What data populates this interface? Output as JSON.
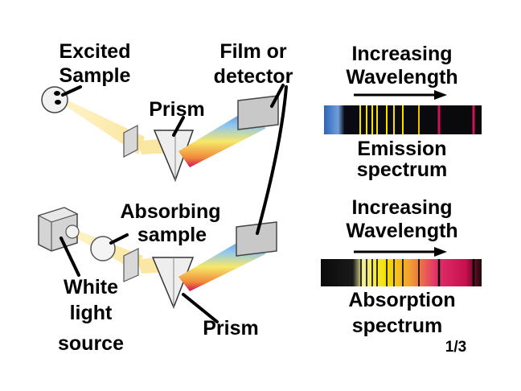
{
  "labels": {
    "excited_sample": [
      "Excited",
      "Sample"
    ],
    "film_detector": [
      "Film or",
      "detector"
    ],
    "prism_top": "Prism",
    "absorbing_sample": [
      "Absorbing",
      "sample"
    ],
    "white_light_source": [
      "White",
      "light",
      "source"
    ],
    "prism_bottom": "Prism",
    "increasing_wavelength_top": [
      "Increasing",
      "Wavelength"
    ],
    "emission_spectrum": [
      "Emission",
      "spectrum"
    ],
    "increasing_wavelength_bottom": [
      "Increasing",
      "Wavelength"
    ],
    "absorption_spectrum": [
      "Absorption",
      "spectrum"
    ],
    "page_number": "1/3"
  },
  "colors": {
    "beam": "#fbe49a",
    "spectrum_blue": "#3f6fc4",
    "spectrum_yellow": "#f4e200",
    "spectrum_red": "#d2105a",
    "line": "#000000"
  }
}
